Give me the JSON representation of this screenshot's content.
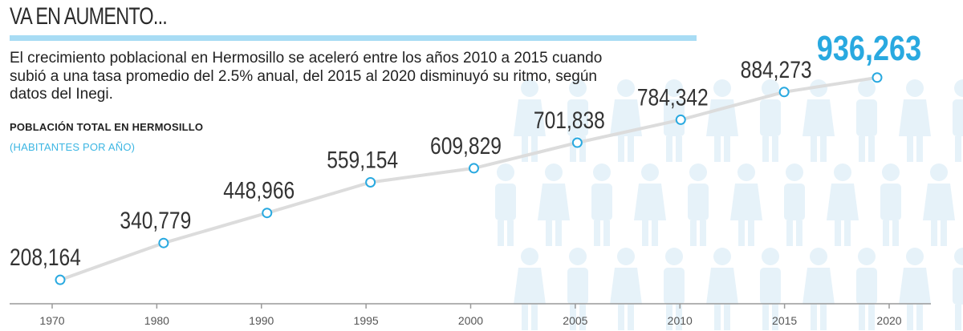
{
  "header": {
    "title": "VA EN AUMENTO...",
    "description": "El crecimiento poblacional en Hermosillo se aceleró entre los años 2010 a 2015 cuando subió a una tasa promedio del 2.5% anual, del 2015 al 2020 disminuyó su ritmo, según datos del Inegi.",
    "subtitle": "POBLACIÓN TOTAL EN HERMOSILLO",
    "unit": "(HABITANTES POR AÑO)"
  },
  "colors": {
    "accent": "#29a9e0",
    "title_bar": "#a8dcf4",
    "line": "#dcdcdc",
    "marker_stroke": "#29a9e0",
    "people_silhouette": "#e6f2f9"
  },
  "chart_data": {
    "type": "line",
    "categories": [
      "1970",
      "1980",
      "1990",
      "1995",
      "2000",
      "2005",
      "2010",
      "2015",
      "2020"
    ],
    "values": [
      208164,
      340779,
      448966,
      559154,
      609829,
      701838,
      784342,
      884273,
      936263
    ],
    "labels": [
      "208,164",
      "340,779",
      "448,966",
      "559,154",
      "609,829",
      "701,838",
      "784,342",
      "884,273",
      "936,263"
    ],
    "title": "POBLACIÓN TOTAL EN HERMOSILLO",
    "subtitle": "(HABITANTES POR AÑO)",
    "highlight_last": true,
    "grid": false
  }
}
